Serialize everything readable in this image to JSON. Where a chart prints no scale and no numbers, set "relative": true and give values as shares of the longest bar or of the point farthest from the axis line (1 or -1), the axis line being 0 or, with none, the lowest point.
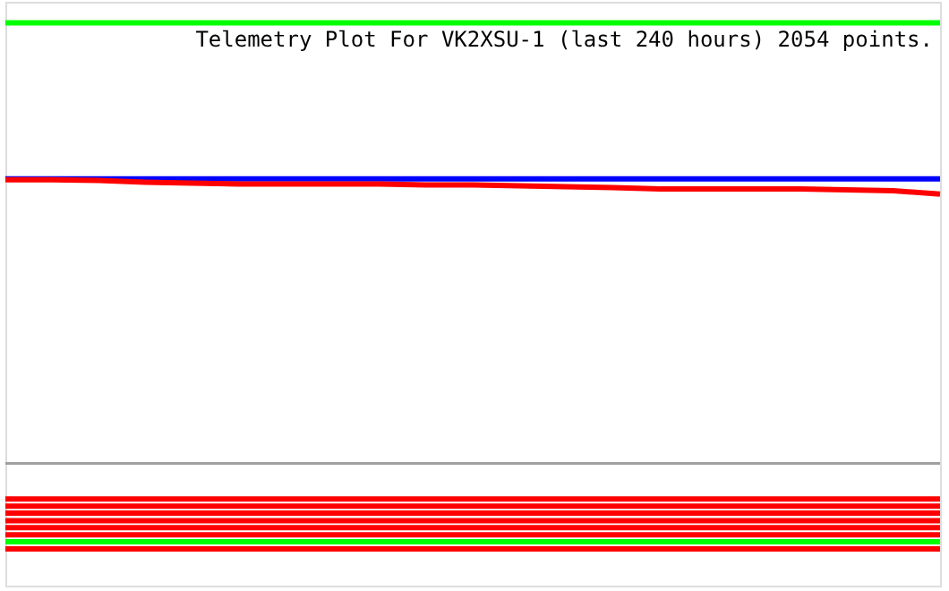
{
  "chart_data": {
    "type": "line",
    "relative": true,
    "title": "Telemetry Plot For VK2XSU-1 (last 240 hours) 2054 points.",
    "categories": [
      null,
      null,
      null,
      null,
      null,
      null,
      null,
      null,
      null,
      null,
      null,
      null,
      null,
      null,
      null,
      null,
      null,
      null,
      null,
      null,
      null
    ],
    "series": [
      {
        "color": "#00ff00",
        "values": [
          1,
          1,
          1,
          1,
          1,
          1,
          1,
          1,
          1,
          1,
          1,
          1,
          1,
          1,
          1,
          1,
          1,
          1,
          1,
          1,
          1
        ]
      },
      {
        "color": "#0000ff",
        "values": [
          0.646,
          0.646,
          0.646,
          0.646,
          0.646,
          0.646,
          0.646,
          0.646,
          0.646,
          0.646,
          0.646,
          0.646,
          0.646,
          0.646,
          0.646,
          0.646,
          0.646,
          0.646,
          0.646,
          0.646,
          0.646
        ]
      },
      {
        "color": "#ff0000",
        "values": [
          0.644,
          0.644,
          0.642,
          0.638,
          0.636,
          0.634,
          0.634,
          0.634,
          0.634,
          0.632,
          0.632,
          0.63,
          0.628,
          0.626,
          0.623,
          0.623,
          0.623,
          0.623,
          0.621,
          0.619,
          0.611
        ]
      },
      {
        "color": "#ff0000",
        "values": [
          -0.081,
          -0.081,
          -0.081,
          -0.081,
          -0.081,
          -0.081,
          -0.081,
          -0.081,
          -0.081,
          -0.081,
          -0.081,
          -0.081,
          -0.081,
          -0.081,
          -0.081,
          -0.081,
          -0.081,
          -0.081,
          -0.081,
          -0.081,
          -0.081
        ]
      },
      {
        "color": "#ff0000",
        "values": [
          -0.097,
          -0.097,
          -0.097,
          -0.097,
          -0.097,
          -0.097,
          -0.097,
          -0.097,
          -0.097,
          -0.097,
          -0.097,
          -0.097,
          -0.097,
          -0.097,
          -0.097,
          -0.097,
          -0.097,
          -0.097,
          -0.097,
          -0.097,
          -0.097
        ]
      },
      {
        "color": "#ff0000",
        "values": [
          -0.113,
          -0.113,
          -0.113,
          -0.113,
          -0.113,
          -0.113,
          -0.113,
          -0.113,
          -0.113,
          -0.113,
          -0.113,
          -0.113,
          -0.113,
          -0.113,
          -0.113,
          -0.113,
          -0.113,
          -0.113,
          -0.113,
          -0.113,
          -0.113
        ]
      },
      {
        "color": "#ff0000",
        "values": [
          -0.13,
          -0.13,
          -0.13,
          -0.13,
          -0.13,
          -0.13,
          -0.13,
          -0.13,
          -0.13,
          -0.13,
          -0.13,
          -0.13,
          -0.13,
          -0.13,
          -0.13,
          -0.13,
          -0.13,
          -0.13,
          -0.13,
          -0.13,
          -0.13
        ]
      },
      {
        "color": "#ff0000",
        "values": [
          -0.146,
          -0.146,
          -0.146,
          -0.146,
          -0.146,
          -0.146,
          -0.146,
          -0.146,
          -0.146,
          -0.146,
          -0.146,
          -0.146,
          -0.146,
          -0.146,
          -0.146,
          -0.146,
          -0.146,
          -0.146,
          -0.146,
          -0.146,
          -0.146
        ]
      },
      {
        "color": "#ff0000",
        "values": [
          -0.162,
          -0.162,
          -0.162,
          -0.162,
          -0.162,
          -0.162,
          -0.162,
          -0.162,
          -0.162,
          -0.162,
          -0.162,
          -0.162,
          -0.162,
          -0.162,
          -0.162,
          -0.162,
          -0.162,
          -0.162,
          -0.162,
          -0.162,
          -0.162
        ]
      },
      {
        "color": "#00ff00",
        "values": [
          -0.178,
          -0.178,
          -0.178,
          -0.178,
          -0.178,
          -0.178,
          -0.178,
          -0.178,
          -0.178,
          -0.178,
          -0.178,
          -0.178,
          -0.178,
          -0.178,
          -0.178,
          -0.178,
          -0.178,
          -0.178,
          -0.178,
          -0.178,
          -0.178
        ]
      },
      {
        "color": "#ff0000",
        "values": [
          -0.194,
          -0.194,
          -0.194,
          -0.194,
          -0.194,
          -0.194,
          -0.194,
          -0.194,
          -0.194,
          -0.194,
          -0.194,
          -0.194,
          -0.194,
          -0.194,
          -0.194,
          -0.194,
          -0.194,
          -0.194,
          -0.194,
          -0.194,
          -0.194
        ]
      }
    ],
    "grid": false,
    "legend": false
  }
}
